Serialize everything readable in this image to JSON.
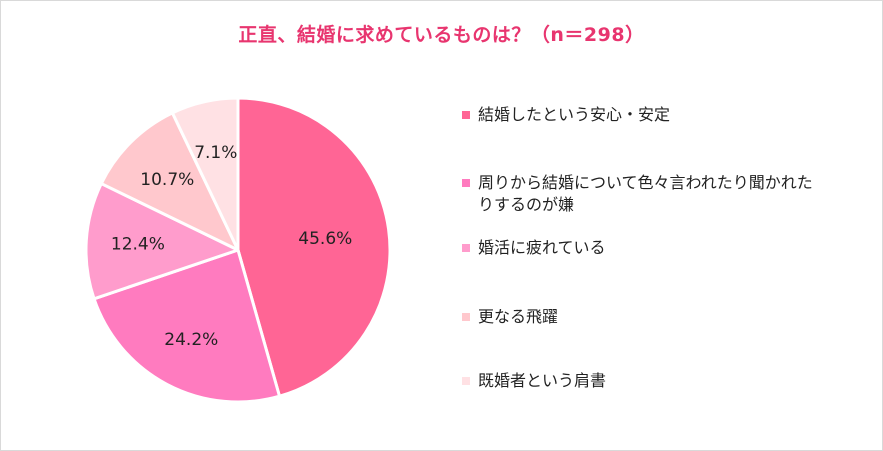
{
  "chart_data": {
    "type": "pie",
    "title": "正直、結婚に求めているものは？（n＝298）",
    "slices": [
      {
        "label": "結婚したという安心・安定",
        "value": 45.6,
        "value_label": "45.6%",
        "color": "#ff6595"
      },
      {
        "label": "周りから結婚について色々言われたり聞かれたりするのが嫌",
        "value": 24.2,
        "value_label": "24.2%",
        "color": "#ff7bbf"
      },
      {
        "label": "婚活に疲れている",
        "value": 12.4,
        "value_label": "12.4%",
        "color": "#ff9ccc"
      },
      {
        "label": "更なる飛躍",
        "value": 10.7,
        "value_label": "10.7%",
        "color": "#ffc8cd"
      },
      {
        "label": "既婚者という肩書",
        "value": 7.1,
        "value_label": "7.1%",
        "color": "#ffe1e4"
      }
    ],
    "legend_position": "right",
    "start_angle_deg": 0,
    "direction": "clockwise"
  }
}
